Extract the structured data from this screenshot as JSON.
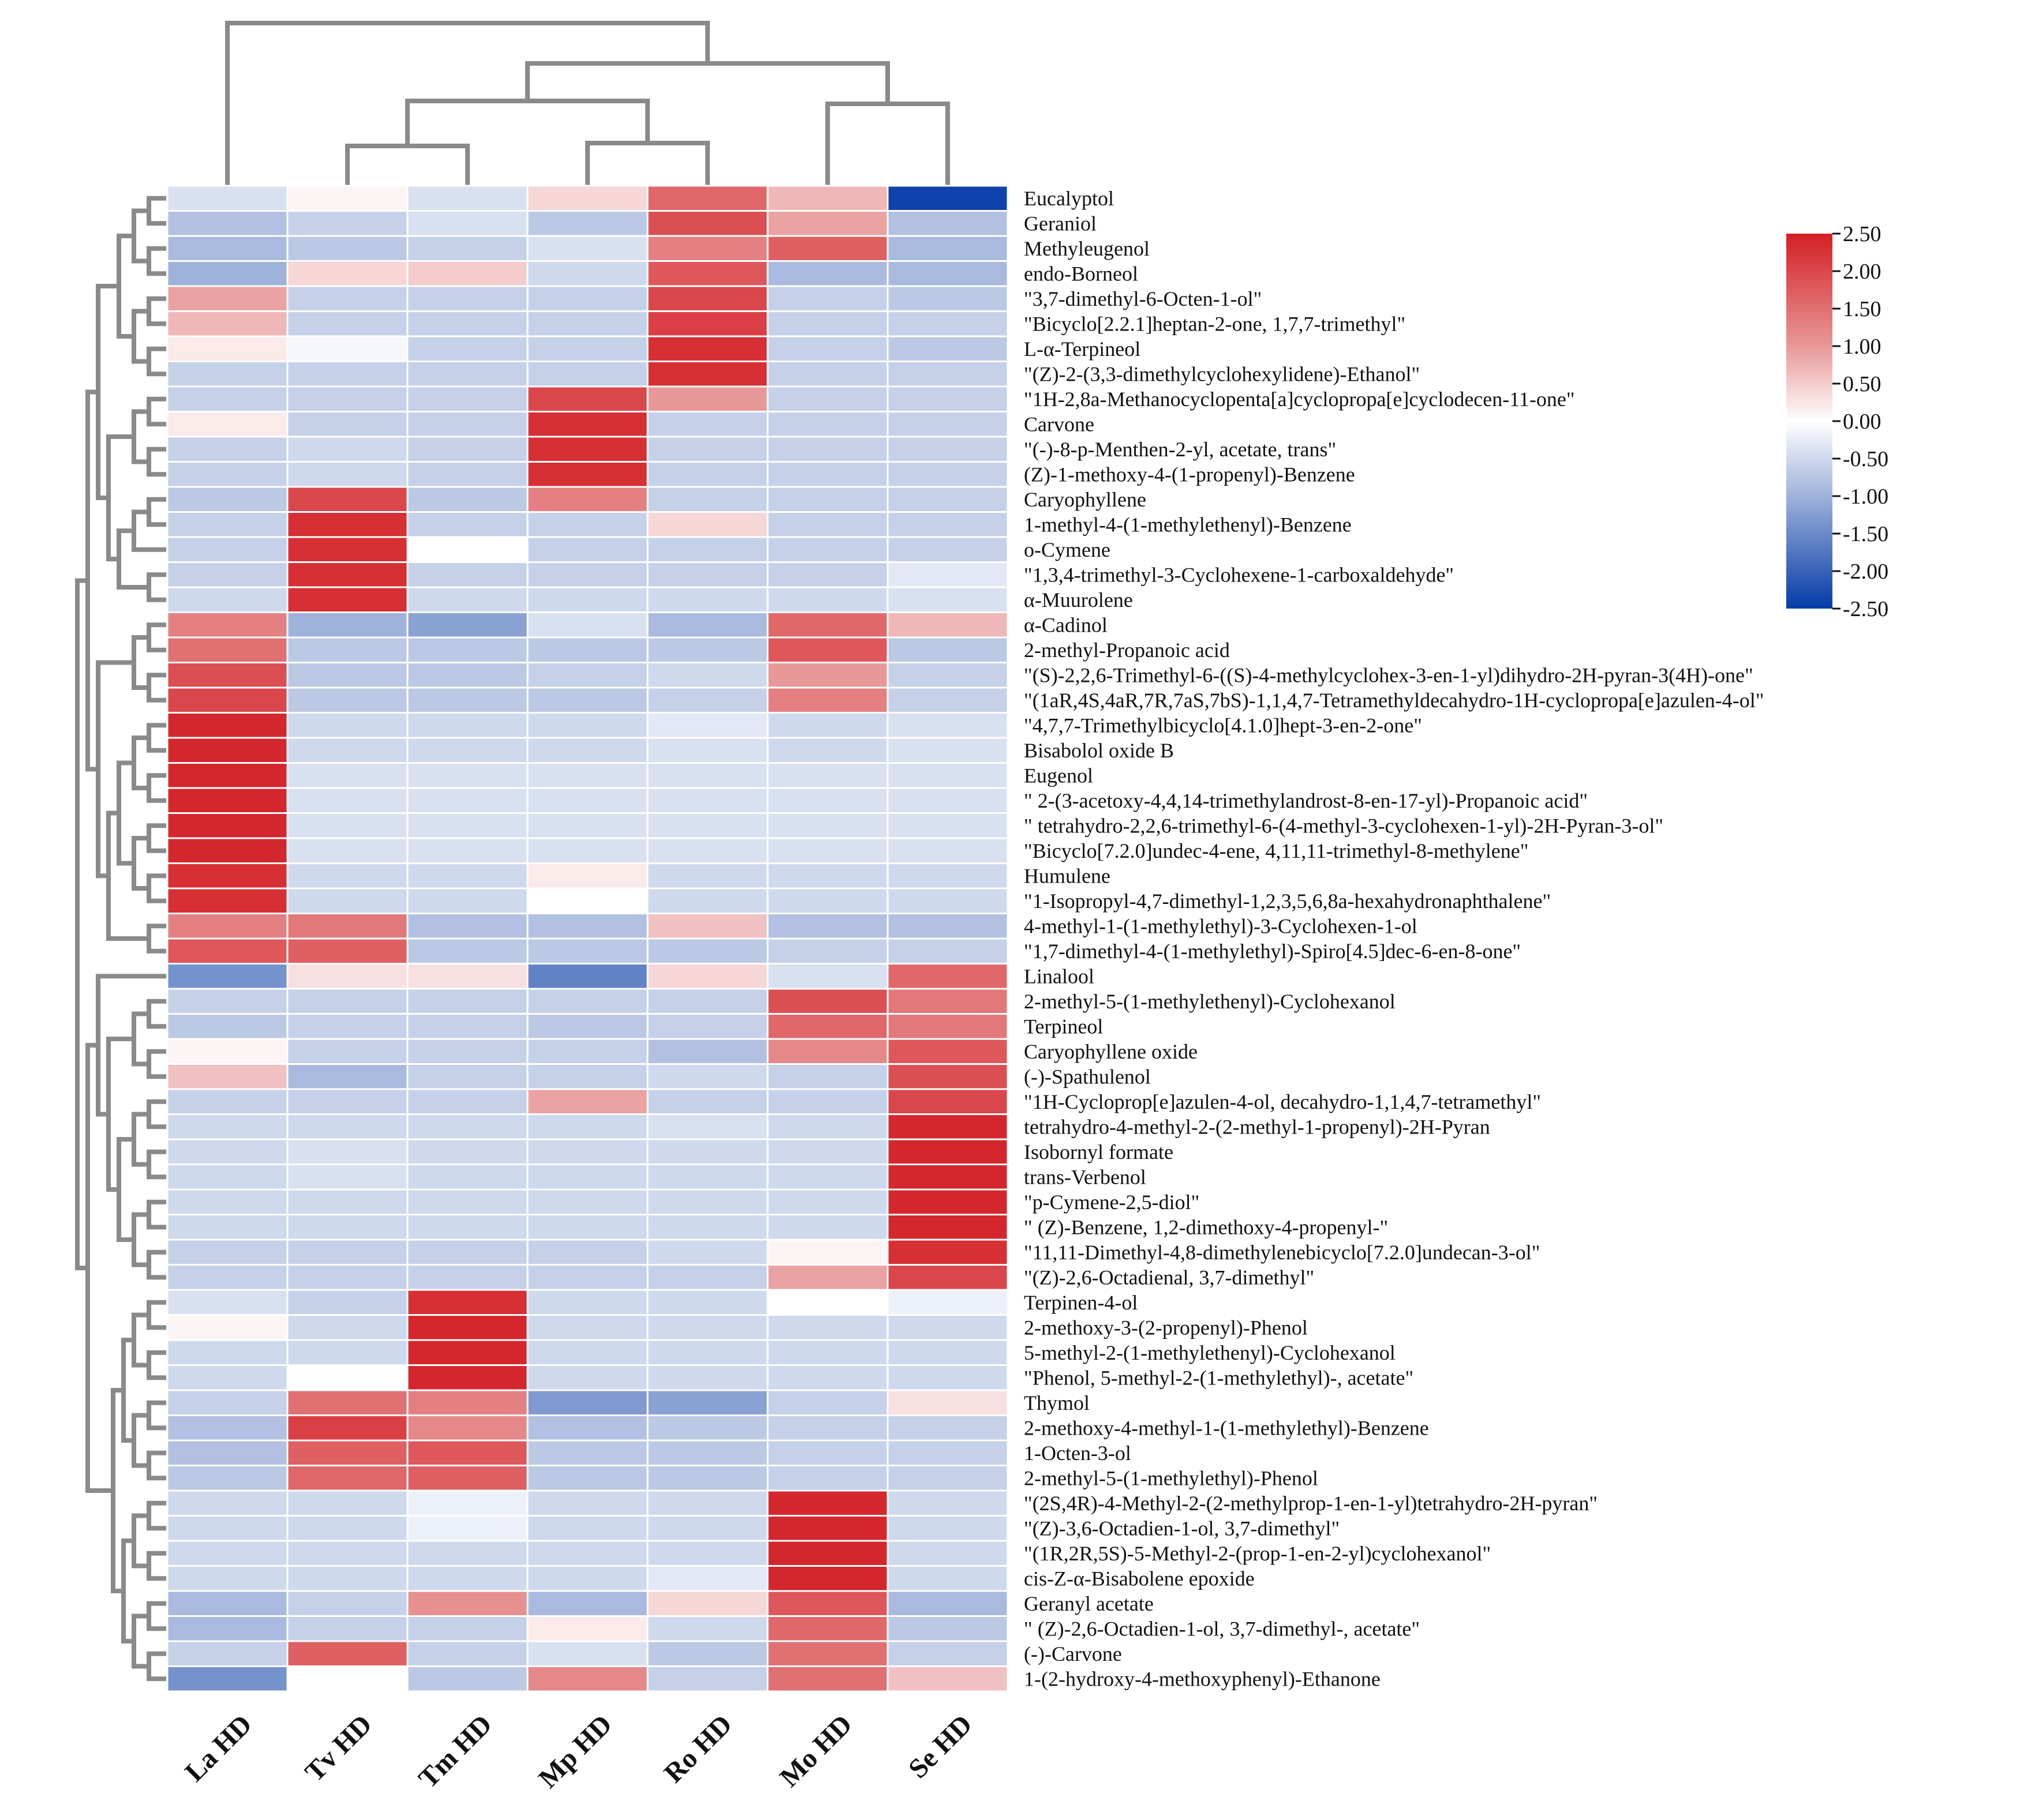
{
  "chart_data": {
    "type": "heatmap",
    "title": "",
    "columns": [
      "La HD",
      "Tv HD",
      "Tm HD",
      "Mp HD",
      "Ro HD",
      "Mo HD",
      "Se HD"
    ],
    "rows": [
      "Eucalyptol",
      "Geraniol",
      "Methyleugenol",
      "endo-Borneol",
      "\"3,7-dimethyl-6-Octen-1-ol\"",
      "\"Bicyclo[2.2.1]heptan-2-one, 1,7,7-trimethyl\"",
      "L-α-Terpineol",
      "\"(Z)-2-(3,3-dimethylcyclohexylidene)-Ethanol\"",
      "\"1H-2,8a-Methanocyclopenta[a]cyclopropa[e]cyclodecen-11-one\"",
      "Carvone",
      "\"(-)-8-p-Menthen-2-yl, acetate, trans\"",
      "(Z)-1-methoxy-4-(1-propenyl)-Benzene",
      "Caryophyllene",
      "1-methyl-4-(1-methylethenyl)-Benzene",
      "o-Cymene",
      "\"1,3,4-trimethyl-3-Cyclohexene-1-carboxaldehyde\"",
      "α-Muurolene",
      "α-Cadinol",
      "2-methyl-Propanoic acid",
      "\"(S)-2,2,6-Trimethyl-6-((S)-4-methylcyclohex-3-en-1-yl)dihydro-2H-pyran-3(4H)-one\"",
      "\"(1aR,4S,4aR,7R,7aS,7bS)-1,1,4,7-Tetramethyldecahydro-1H-cyclopropa[e]azulen-4-ol\"",
      "\"4,7,7-Trimethylbicyclo[4.1.0]hept-3-en-2-one\"",
      "Bisabolol oxide B",
      "Eugenol",
      "\" 2-(3-acetoxy-4,4,14-trimethylandrost-8-en-17-yl)-Propanoic acid\"",
      "\" tetrahydro-2,2,6-trimethyl-6-(4-methyl-3-cyclohexen-1-yl)-2H-Pyran-3-ol\"",
      "\"Bicyclo[7.2.0]undec-4-ene, 4,11,11-trimethyl-8-methylene\"",
      "Humulene",
      "\"1-Isopropyl-4,7-dimethyl-1,2,3,5,6,8a-hexahydronaphthalene\"",
      "4-methyl-1-(1-methylethyl)-3-Cyclohexen-1-ol",
      "\"1,7-dimethyl-4-(1-methylethyl)-Spiro[4.5]dec-6-en-8-one\"",
      "Linalool",
      "2-methyl-5-(1-methylethenyl)-Cyclohexanol",
      "Terpineol",
      "Caryophyllene oxide",
      "(-)-Spathulenol",
      "\"1H-Cycloprop[e]azulen-4-ol, decahydro-1,1,4,7-tetramethyl\"",
      "tetrahydro-4-methyl-2-(2-methyl-1-propenyl)-2H-Pyran",
      "Isobornyl formate",
      "trans-Verbenol",
      "\"p-Cymene-2,5-diol\"",
      "\" (Z)-Benzene, 1,2-dimethoxy-4-propenyl-\"",
      "\"11,11-Dimethyl-4,8-dimethylenebicyclo[7.2.0]undecan-3-ol\"",
      "\"(Z)-2,6-Octadienal, 3,7-dimethyl\"",
      "Terpinen-4-ol",
      "2-methoxy-3-(2-propenyl)-Phenol",
      "5-methyl-2-(1-methylethenyl)-Cyclohexanol",
      "\"Phenol, 5-methyl-2-(1-methylethyl)-, acetate\"",
      "Thymol",
      "2-methoxy-4-methyl-1-(1-methylethyl)-Benzene",
      "1-Octen-3-ol",
      "2-methyl-5-(1-methylethyl)-Phenol",
      "\"(2S,4R)-4-Methyl-2-(2-methylprop-1-en-1-yl)tetrahydro-2H-pyran\"",
      "\"(Z)-3,6-Octadien-1-ol, 3,7-dimethyl\"",
      "\"(1R,2R,5S)-5-Methyl-2-(prop-1-en-2-yl)cyclohexanol\"",
      "cis-Z-α-Bisabolene epoxide",
      "Geranyl acetate",
      "\" (Z)-2,6-Octadien-1-ol, 3,7-dimethyl-, acetate\"",
      "(-)-Carvone",
      "1-(2-hydroxy-4-methoxyphenyl)-Ethanone"
    ],
    "values": [
      [
        -0.4,
        0.1,
        -0.4,
        0.4,
        1.6,
        0.7,
        -2.4
      ],
      [
        -0.8,
        -0.6,
        -0.4,
        -0.7,
        1.9,
        0.9,
        -0.8
      ],
      [
        -0.9,
        -0.7,
        -0.6,
        -0.4,
        1.3,
        1.7,
        -0.9
      ],
      [
        -1.0,
        0.4,
        0.5,
        -0.5,
        1.8,
        -0.9,
        -0.9
      ],
      [
        0.9,
        -0.6,
        -0.6,
        -0.6,
        2.0,
        -0.6,
        -0.7
      ],
      [
        0.7,
        -0.6,
        -0.6,
        -0.6,
        2.1,
        -0.6,
        -0.6
      ],
      [
        0.2,
        -0.1,
        -0.6,
        -0.6,
        2.3,
        -0.6,
        -0.7
      ],
      [
        -0.6,
        -0.6,
        -0.6,
        -0.6,
        2.3,
        -0.6,
        -0.6
      ],
      [
        -0.6,
        -0.6,
        -0.6,
        2.0,
        1.0,
        -0.6,
        -0.6
      ],
      [
        0.2,
        -0.6,
        -0.6,
        2.3,
        -0.6,
        -0.6,
        -0.6
      ],
      [
        -0.6,
        -0.5,
        -0.6,
        2.3,
        -0.6,
        -0.6,
        -0.6
      ],
      [
        -0.6,
        -0.5,
        -0.6,
        2.3,
        -0.6,
        -0.6,
        -0.6
      ],
      [
        -0.7,
        2.0,
        -0.7,
        1.3,
        -0.6,
        -0.6,
        -0.6
      ],
      [
        -0.6,
        2.3,
        -0.6,
        -0.6,
        0.4,
        -0.6,
        -0.6
      ],
      [
        -0.6,
        2.3,
        0.0,
        -0.6,
        -0.6,
        -0.6,
        -0.6
      ],
      [
        -0.6,
        2.3,
        -0.6,
        -0.6,
        -0.6,
        -0.6,
        -0.3
      ],
      [
        -0.5,
        2.3,
        -0.5,
        -0.5,
        -0.5,
        -0.5,
        -0.4
      ],
      [
        1.3,
        -1.0,
        -1.2,
        -0.4,
        -0.9,
        1.6,
        0.7
      ],
      [
        1.5,
        -0.7,
        -0.7,
        -0.7,
        -0.7,
        1.8,
        -0.7
      ],
      [
        1.9,
        -0.7,
        -0.7,
        -0.6,
        -0.5,
        1.0,
        -0.6
      ],
      [
        2.0,
        -0.7,
        -0.7,
        -0.7,
        -0.6,
        1.3,
        -0.6
      ],
      [
        2.4,
        -0.5,
        -0.5,
        -0.5,
        -0.3,
        -0.5,
        -0.4
      ],
      [
        2.4,
        -0.5,
        -0.5,
        -0.5,
        -0.4,
        -0.5,
        -0.4
      ],
      [
        2.4,
        -0.4,
        -0.4,
        -0.4,
        -0.4,
        -0.4,
        -0.4
      ],
      [
        2.4,
        -0.4,
        -0.4,
        -0.4,
        -0.4,
        -0.4,
        -0.4
      ],
      [
        2.4,
        -0.4,
        -0.4,
        -0.4,
        -0.4,
        -0.4,
        -0.4
      ],
      [
        2.4,
        -0.4,
        -0.4,
        -0.4,
        -0.4,
        -0.4,
        -0.4
      ],
      [
        2.3,
        -0.5,
        -0.5,
        0.2,
        -0.5,
        -0.5,
        -0.5
      ],
      [
        2.3,
        -0.5,
        -0.5,
        0.0,
        -0.5,
        -0.5,
        -0.5
      ],
      [
        1.3,
        1.4,
        -0.8,
        -0.8,
        0.6,
        -0.8,
        -0.8
      ],
      [
        1.8,
        1.7,
        -0.7,
        -0.7,
        -0.7,
        -0.6,
        -0.6
      ],
      [
        -1.4,
        0.3,
        0.3,
        -1.6,
        0.4,
        -0.4,
        1.6
      ],
      [
        -0.6,
        -0.6,
        -0.6,
        -0.6,
        -0.6,
        1.9,
        1.4
      ],
      [
        -0.7,
        -0.6,
        -0.6,
        -0.7,
        -0.6,
        1.6,
        1.4
      ],
      [
        0.1,
        -0.6,
        -0.6,
        -0.6,
        -0.8,
        1.2,
        1.8
      ],
      [
        0.6,
        -0.9,
        -0.6,
        -0.6,
        -0.5,
        -0.6,
        1.9
      ],
      [
        -0.6,
        -0.6,
        -0.6,
        0.9,
        -0.6,
        -0.6,
        2.0
      ],
      [
        -0.5,
        -0.5,
        -0.5,
        -0.5,
        -0.4,
        -0.5,
        2.4
      ],
      [
        -0.5,
        -0.4,
        -0.5,
        -0.5,
        -0.5,
        -0.5,
        2.4
      ],
      [
        -0.5,
        -0.4,
        -0.5,
        -0.5,
        -0.5,
        -0.5,
        2.4
      ],
      [
        -0.5,
        -0.5,
        -0.5,
        -0.5,
        -0.5,
        -0.5,
        2.4
      ],
      [
        -0.5,
        -0.5,
        -0.5,
        -0.5,
        -0.5,
        -0.5,
        2.4
      ],
      [
        -0.6,
        -0.6,
        -0.6,
        -0.6,
        -0.5,
        0.1,
        2.3
      ],
      [
        -0.6,
        -0.6,
        -0.6,
        -0.6,
        -0.6,
        0.9,
        2.0
      ],
      [
        -0.4,
        -0.6,
        2.3,
        -0.5,
        -0.5,
        0.0,
        -0.2
      ],
      [
        0.1,
        -0.5,
        2.4,
        -0.5,
        -0.5,
        -0.5,
        -0.5
      ],
      [
        -0.5,
        -0.5,
        2.4,
        -0.5,
        -0.5,
        -0.5,
        -0.5
      ],
      [
        -0.5,
        0.0,
        2.4,
        -0.5,
        -0.5,
        -0.5,
        -0.5
      ],
      [
        -0.6,
        1.5,
        1.3,
        -1.3,
        -1.2,
        -0.6,
        0.3
      ],
      [
        -0.8,
        2.1,
        1.2,
        -0.8,
        -0.7,
        -0.6,
        -0.6
      ],
      [
        -0.8,
        1.7,
        1.8,
        -0.7,
        -0.7,
        -0.6,
        -0.6
      ],
      [
        -0.7,
        1.6,
        1.7,
        -0.7,
        -0.7,
        -0.6,
        -0.6
      ],
      [
        -0.5,
        -0.5,
        -0.2,
        -0.5,
        -0.5,
        2.4,
        -0.5
      ],
      [
        -0.5,
        -0.5,
        -0.2,
        -0.5,
        -0.5,
        2.4,
        -0.5
      ],
      [
        -0.5,
        -0.5,
        -0.5,
        -0.5,
        -0.5,
        2.4,
        -0.5
      ],
      [
        -0.5,
        -0.5,
        -0.5,
        -0.5,
        -0.3,
        2.4,
        -0.5
      ],
      [
        -0.9,
        -0.6,
        1.1,
        -0.9,
        0.4,
        1.8,
        -0.9
      ],
      [
        -0.9,
        -0.6,
        -0.6,
        0.2,
        -0.5,
        1.6,
        -0.7
      ],
      [
        -0.6,
        1.7,
        -0.6,
        -0.4,
        -0.7,
        1.5,
        -0.6
      ],
      [
        -1.4,
        0.0,
        -0.7,
        1.2,
        -0.6,
        1.5,
        0.6
      ]
    ],
    "colorbar": {
      "min": -2.5,
      "max": 2.5,
      "ticks": [
        "2.50",
        "2.00",
        "1.50",
        "1.00",
        "0.50",
        "0.00",
        "-0.50",
        "-1.00",
        "-1.50",
        "-2.00",
        "-2.50"
      ],
      "colors": {
        "low": "#053ba8",
        "mid_low": "#9fb2da",
        "mid": "#ffffff",
        "mid_high": "#e89898",
        "high": "#d31f25"
      }
    },
    "dendrogram": {
      "columns": "La HD | ((Tv HD, Tm HD), (Mp HD, Ro HD)), (Mo HD, Se HD)",
      "rows": "hierarchical clustering of compounds"
    }
  }
}
